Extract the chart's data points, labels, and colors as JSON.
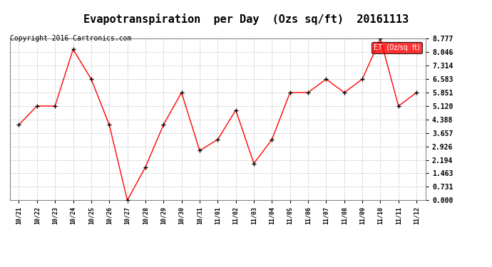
{
  "title": "Evapotranspiration  per Day  (Ozs sq/ft)  20161113",
  "copyright": "Copyright 2016 Cartronics.com",
  "legend_label": "ET  (0z/sq  ft)",
  "x_labels": [
    "10/21",
    "10/22",
    "10/23",
    "10/24",
    "10/25",
    "10/26",
    "10/27",
    "10/28",
    "10/29",
    "10/30",
    "10/31",
    "11/01",
    "11/02",
    "11/03",
    "11/04",
    "11/05",
    "11/06",
    "11/07",
    "11/08",
    "11/09",
    "11/10",
    "11/11",
    "11/12"
  ],
  "y_values": [
    4.1,
    5.12,
    5.12,
    8.2,
    6.583,
    4.1,
    0.0,
    1.8,
    4.1,
    5.851,
    2.7,
    3.3,
    4.9,
    2.0,
    3.3,
    5.851,
    5.851,
    6.583,
    5.851,
    6.583,
    8.777,
    5.12,
    5.851
  ],
  "y_ticks": [
    0.0,
    0.731,
    1.463,
    2.194,
    2.926,
    3.657,
    4.388,
    5.12,
    5.851,
    6.583,
    7.314,
    8.046,
    8.777
  ],
  "ylim": [
    0.0,
    8.777
  ],
  "line_color": "red",
  "marker_color": "black",
  "background_color": "#ffffff",
  "grid_color": "#cccccc",
  "title_fontsize": 11,
  "copyright_fontsize": 7,
  "tick_fontsize": 7,
  "xtick_fontsize": 6,
  "legend_bg": "red",
  "legend_text_color": "white"
}
